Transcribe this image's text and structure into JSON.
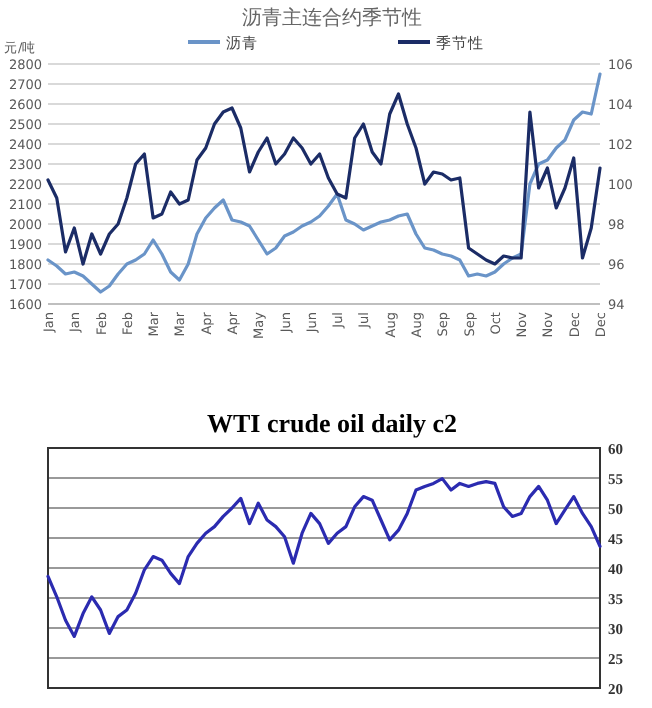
{
  "chart_data": [
    {
      "type": "line",
      "title": "沥青主连合约季节性",
      "ylabel": "元/吨",
      "categories": [
        "Jan",
        null,
        null,
        "Jan",
        null,
        null,
        "Feb",
        null,
        null,
        "Feb",
        null,
        null,
        "Mar",
        null,
        null,
        "Mar",
        null,
        null,
        "Apr",
        null,
        null,
        "Apr",
        null,
        null,
        "May",
        null,
        null,
        "Jun",
        null,
        null,
        "Jun",
        null,
        null,
        "Jul",
        null,
        null,
        "Jul",
        null,
        null,
        "Aug",
        null,
        null,
        "Aug",
        null,
        null,
        "Sep",
        null,
        null,
        "Sep",
        null,
        null,
        "Oct",
        null,
        null,
        "Nov",
        null,
        null,
        "Nov",
        null,
        null,
        "Dec",
        null,
        null,
        "Dec"
      ],
      "series": [
        {
          "name": "沥青",
          "color": "#6a94c8",
          "values": [
            1820,
            1790,
            1750,
            1760,
            1740,
            1700,
            1660,
            1690,
            1750,
            1800,
            1820,
            1850,
            1920,
            1850,
            1760,
            1720,
            1800,
            1950,
            2030,
            2080,
            2120,
            2020,
            2010,
            1990,
            1920,
            1850,
            1880,
            1940,
            1960,
            1990,
            2010,
            2040,
            2090,
            2150,
            2020,
            2000,
            1970,
            1990,
            2010,
            2020,
            2040,
            2050,
            1950,
            1880,
            1870,
            1850,
            1840,
            1820,
            1740,
            1750,
            1740,
            1760,
            1800,
            1830,
            1850,
            2200,
            2300,
            2320,
            2380,
            2420,
            2520,
            2560,
            2550,
            2750
          ]
        },
        {
          "name": "季节性",
          "color": "#1b2c66",
          "axis": "y2",
          "values": [
            100.2,
            99.3,
            96.6,
            97.8,
            96,
            97.5,
            96.5,
            97.5,
            98,
            99.3,
            101,
            101.5,
            98.3,
            98.5,
            99.6,
            99,
            99.2,
            101.2,
            101.8,
            103,
            103.6,
            103.8,
            102.8,
            100.6,
            101.6,
            102.3,
            101,
            101.5,
            102.3,
            101.8,
            101,
            101.5,
            100.3,
            99.5,
            99.3,
            102.3,
            103,
            101.6,
            101,
            103.5,
            104.5,
            103,
            101.8,
            100,
            100.6,
            100.5,
            100.2,
            100.3,
            96.8,
            96.5,
            96.2,
            96,
            96.4,
            96.3,
            96.3,
            103.6,
            99.8,
            100.8,
            98.8,
            99.8,
            101.3,
            96.3,
            97.8,
            100.8
          ]
        }
      ],
      "ylim": [
        1600,
        2800
      ],
      "yticks": [
        1600,
        1700,
        1800,
        1900,
        2000,
        2100,
        2200,
        2300,
        2400,
        2500,
        2600,
        2700,
        2800
      ],
      "y2lim": [
        94,
        106
      ],
      "y2ticks": [
        94,
        96,
        98,
        100,
        102,
        104,
        106
      ],
      "grid": "y",
      "legend": "top"
    },
    {
      "type": "line",
      "title": "WTI crude oil daily c2",
      "categories": [
        null,
        null,
        null,
        null,
        null,
        null,
        null,
        null,
        null,
        null,
        null,
        null,
        null,
        null,
        null,
        null,
        null,
        null,
        null,
        null,
        null,
        null,
        null,
        null,
        null,
        null,
        null,
        null,
        null,
        null,
        null,
        null,
        null,
        null,
        null,
        null,
        null,
        null,
        null,
        null,
        null,
        null,
        null,
        null,
        null,
        null,
        null,
        null,
        null,
        null,
        null,
        null,
        null,
        null,
        null,
        null,
        null,
        null,
        null,
        null,
        null,
        null,
        null,
        null
      ],
      "series": [
        {
          "color": "#2b2bb0",
          "values": [
            38.6,
            35.2,
            31.3,
            28.6,
            32.4,
            35.2,
            33,
            29.1,
            31.9,
            33,
            35.8,
            39.7,
            41.9,
            41.3,
            39.1,
            37.4,
            41.9,
            44.1,
            45.8,
            46.9,
            48.6,
            50,
            51.6,
            47.4,
            50.8,
            48,
            46.9,
            45.2,
            40.8,
            45.8,
            49.1,
            47.4,
            44.1,
            45.8,
            46.9,
            50.2,
            51.9,
            51.3,
            48,
            44.7,
            46.3,
            49.1,
            53,
            53.6,
            54.1,
            54.9,
            53,
            54.1,
            53.6,
            54.1,
            54.4,
            54.1,
            50.2,
            48.6,
            49.1,
            51.9,
            53.6,
            51.3,
            47.4,
            49.7,
            51.9,
            49.1,
            46.9,
            43.6
          ]
        }
      ],
      "ylim": [
        20,
        60
      ],
      "yticks": [
        20,
        25,
        30,
        35,
        40,
        45,
        50,
        55,
        60
      ],
      "grid": "y",
      "tick_labels": "y"
    }
  ]
}
